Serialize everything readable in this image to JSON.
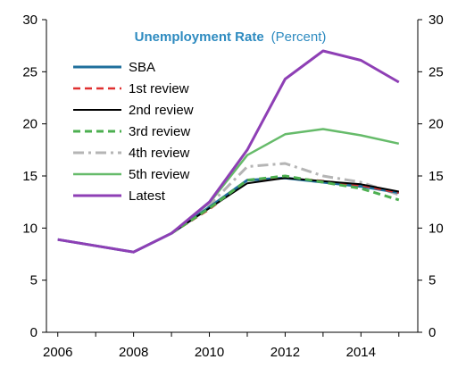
{
  "chart_data": {
    "type": "line",
    "title": "Unemployment Rate",
    "subtitle": "(Percent)",
    "title_color": "#2e8bc0",
    "x_ticks": [
      "2006",
      "2008",
      "2010",
      "2012",
      "2014"
    ],
    "x_tick_values": [
      2006,
      2008,
      2010,
      2012,
      2014
    ],
    "y_ticks_left": [
      "0",
      "5",
      "10",
      "15",
      "20",
      "25",
      "30"
    ],
    "y_ticks_right": [
      "0",
      "5",
      "10",
      "15",
      "20",
      "25",
      "30"
    ],
    "y_tick_values": [
      0,
      5,
      10,
      15,
      20,
      25,
      30
    ],
    "xlim": [
      2005.7,
      2015.5
    ],
    "ylim": [
      0,
      30
    ],
    "grid": false,
    "legend_position": "top-left",
    "series": [
      {
        "name": "SBA",
        "color": "#1f6f9c",
        "dash": "solid",
        "width": 3,
        "x": [
          2006,
          2007,
          2008,
          2009,
          2010,
          2011,
          2012,
          2013,
          2014,
          2015
        ],
        "y": [
          8.9,
          8.3,
          7.7,
          9.5,
          12.0,
          14.6,
          14.8,
          14.4,
          14.0,
          13.4
        ]
      },
      {
        "name": "1st review",
        "color": "#e03030",
        "dash": "dashed",
        "width": 2.5,
        "x": [
          2009,
          2010,
          2011,
          2012,
          2013,
          2014,
          2015
        ],
        "y": [
          9.5,
          11.8,
          14.6,
          14.9,
          14.5,
          14.1,
          13.4
        ]
      },
      {
        "name": "2nd review",
        "color": "#000000",
        "dash": "solid",
        "width": 2,
        "x": [
          2009,
          2010,
          2011,
          2012,
          2013,
          2014,
          2015
        ],
        "y": [
          9.5,
          11.9,
          14.3,
          14.8,
          14.5,
          14.2,
          13.5
        ]
      },
      {
        "name": "3rd review",
        "color": "#4caf50",
        "dash": "dashed",
        "width": 3,
        "x": [
          2009,
          2010,
          2011,
          2012,
          2013,
          2014,
          2015
        ],
        "y": [
          9.5,
          11.9,
          14.6,
          15.0,
          14.4,
          13.8,
          12.7
        ]
      },
      {
        "name": "4th review",
        "color": "#b5b5b5",
        "dash": "dashdot",
        "width": 3,
        "x": [
          2009,
          2010,
          2011,
          2012,
          2013,
          2014,
          2015
        ],
        "y": [
          9.5,
          12.2,
          15.9,
          16.2,
          15.0,
          14.4,
          13.2
        ]
      },
      {
        "name": "5th review",
        "color": "#66bb6a",
        "dash": "solid",
        "width": 2.5,
        "x": [
          2009,
          2010,
          2011,
          2012,
          2013,
          2014,
          2015
        ],
        "y": [
          9.5,
          12.4,
          17.0,
          19.0,
          19.5,
          18.9,
          18.1
        ]
      },
      {
        "name": "Latest",
        "color": "#8e3fb5",
        "dash": "solid",
        "width": 3,
        "x": [
          2006,
          2007,
          2008,
          2009,
          2010,
          2011,
          2012,
          2013,
          2014,
          2015
        ],
        "y": [
          8.9,
          8.3,
          7.7,
          9.5,
          12.5,
          17.5,
          24.3,
          27.0,
          26.1,
          24.0
        ]
      }
    ]
  }
}
